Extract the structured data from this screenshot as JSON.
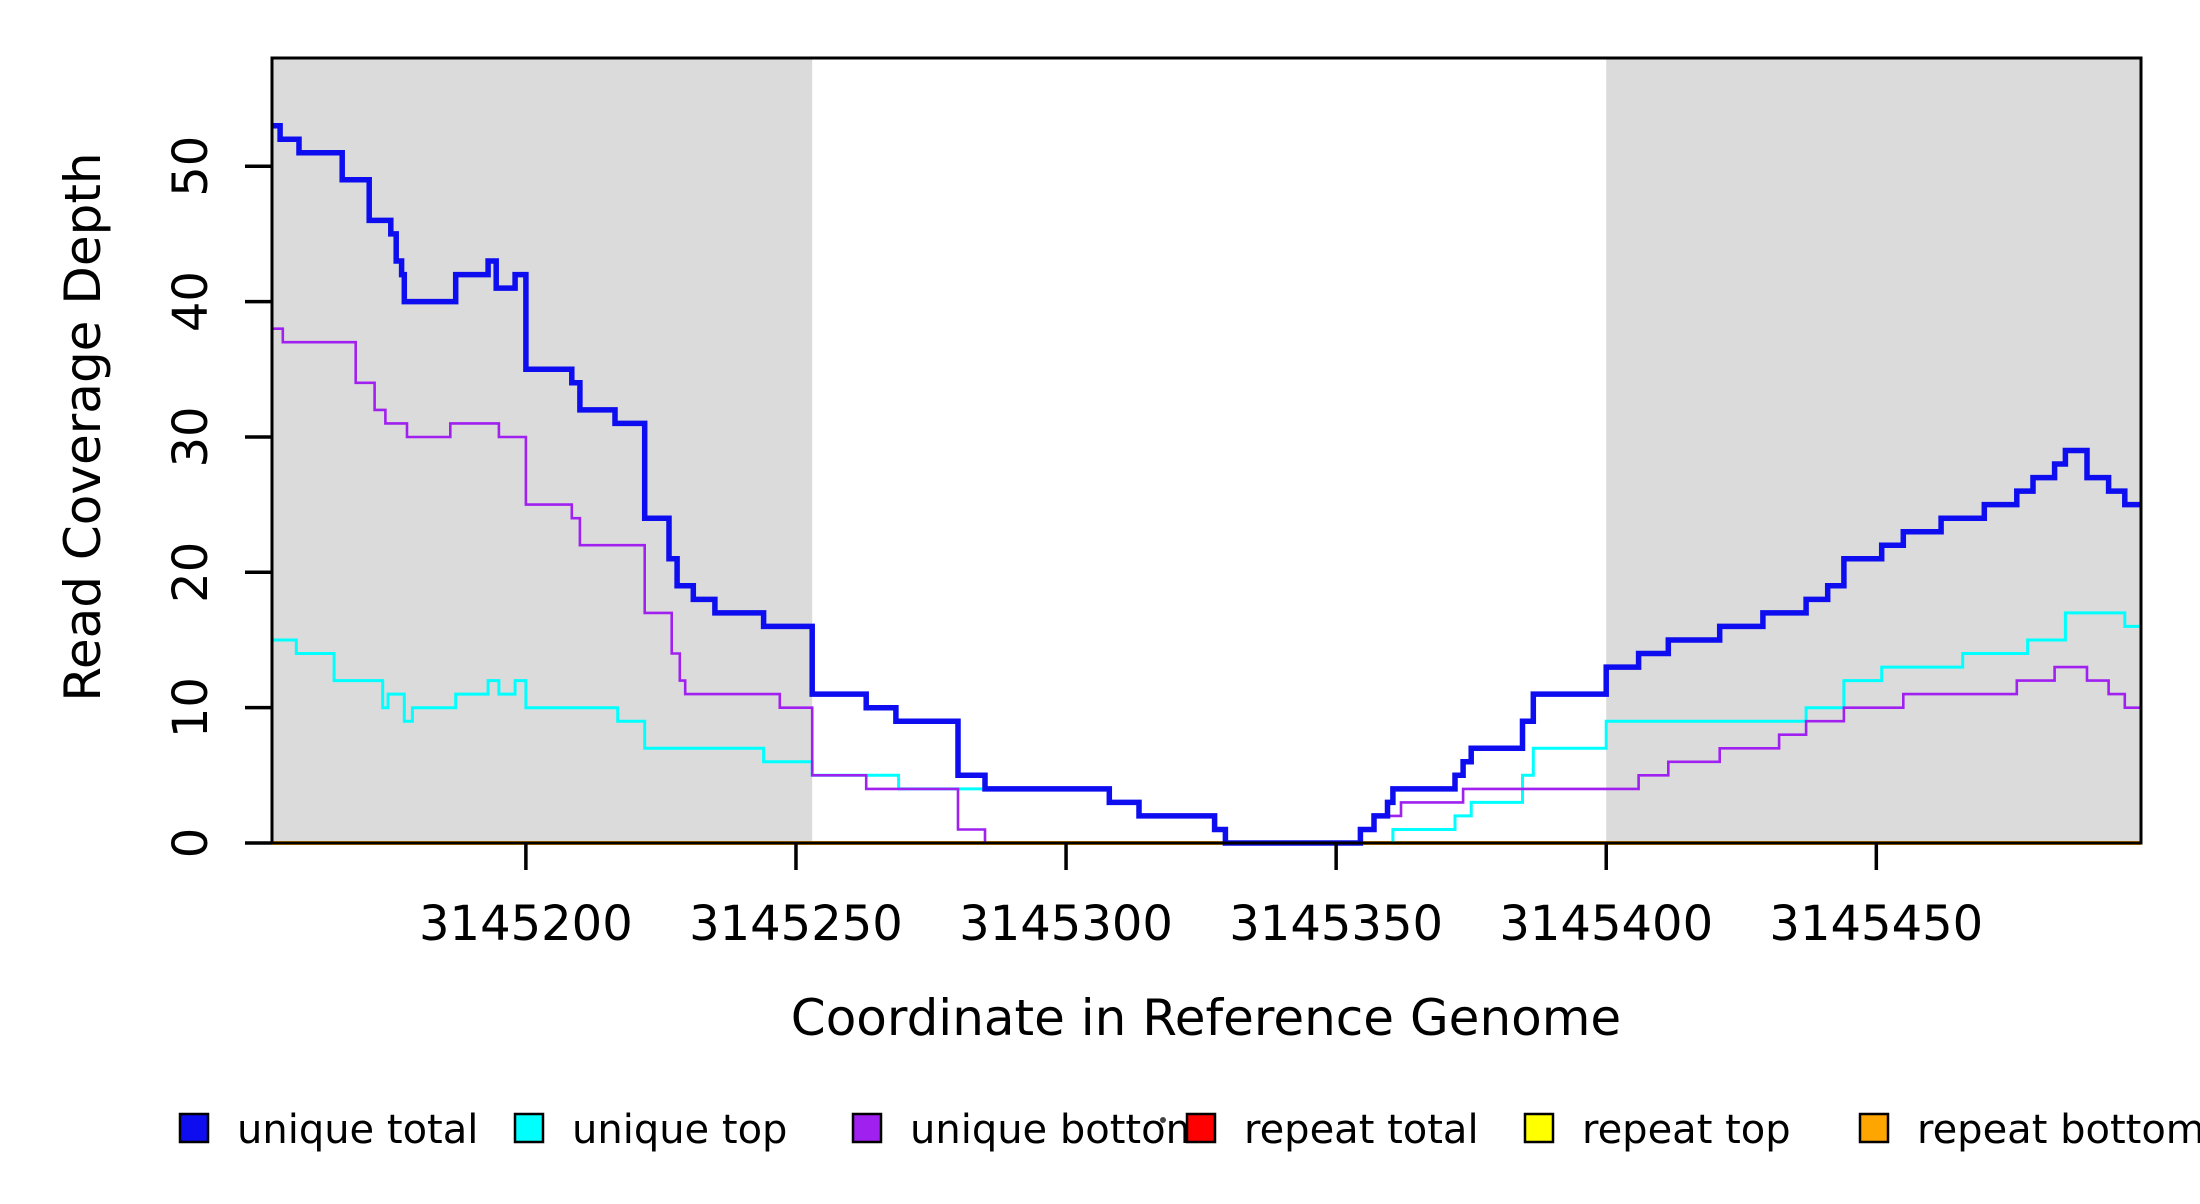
{
  "chart_data": {
    "type": "step-line",
    "title": "",
    "xlabel": "Coordinate in Reference Genome",
    "ylabel": "Read Coverage Depth",
    "xlim": [
      3145153,
      3145499
    ],
    "ylim": [
      0,
      58
    ],
    "grid": false,
    "legend_position": "bottom",
    "background_band_color": "#dbdbdb",
    "axis_color": "#000000",
    "x_ticks": [
      {
        "value": 3145200,
        "label": "3145200"
      },
      {
        "value": 3145250,
        "label": "3145250"
      },
      {
        "value": 3145300,
        "label": "3145300"
      },
      {
        "value": 3145350,
        "label": "3145350"
      },
      {
        "value": 3145400,
        "label": "3145400"
      },
      {
        "value": 3145450,
        "label": "3145450"
      }
    ],
    "y_ticks": [
      {
        "value": 0,
        "label": "0"
      },
      {
        "value": 10,
        "label": "10"
      },
      {
        "value": 20,
        "label": "20"
      },
      {
        "value": 30,
        "label": "30"
      },
      {
        "value": 40,
        "label": "40"
      },
      {
        "value": 50,
        "label": "50"
      }
    ],
    "shaded_regions": [
      {
        "x0": 3145153,
        "x1": 3145253
      },
      {
        "x0": 3145400,
        "x1": 3145499
      }
    ],
    "series": [
      {
        "name": "repeat total",
        "color": "#ff0000",
        "width": 2.6,
        "points": [
          [
            3145153,
            0
          ]
        ]
      },
      {
        "name": "repeat top",
        "color": "#ffff00",
        "width": 2.6,
        "points": [
          [
            3145153,
            0
          ]
        ]
      },
      {
        "name": "repeat bottom",
        "color": "#ffa500",
        "width": 4,
        "points": [
          [
            3145153,
            0
          ]
        ]
      },
      {
        "name": "unique top",
        "color": "#00ffff",
        "width": 3,
        "points": [
          [
            3145153,
            15
          ],
          [
            3145157.5,
            14
          ],
          [
            3145164.5,
            12
          ],
          [
            3145173.5,
            10
          ],
          [
            3145174.5,
            11
          ],
          [
            3145177.5,
            9
          ],
          [
            3145179,
            10
          ],
          [
            3145187,
            11
          ],
          [
            3145193,
            12
          ],
          [
            3145195,
            11
          ],
          [
            3145198,
            12
          ],
          [
            3145200,
            10
          ],
          [
            3145217,
            9
          ],
          [
            3145222,
            7
          ],
          [
            3145244,
            6
          ],
          [
            3145253,
            5
          ],
          [
            3145269,
            4
          ],
          [
            3145308,
            3
          ],
          [
            3145313.5,
            2
          ],
          [
            3145327.5,
            1
          ],
          [
            3145329.5,
            0
          ],
          [
            3145360.5,
            1
          ],
          [
            3145372,
            2
          ],
          [
            3145375,
            3
          ],
          [
            3145384.5,
            5
          ],
          [
            3145386.5,
            7
          ],
          [
            3145400,
            9
          ],
          [
            3145437,
            10
          ],
          [
            3145444,
            12
          ],
          [
            3145451,
            13
          ],
          [
            3145466,
            14
          ],
          [
            3145478,
            15
          ],
          [
            3145485,
            17
          ],
          [
            3145496,
            16
          ]
        ]
      },
      {
        "name": "unique bottom",
        "color": "#a020f0",
        "width": 2.6,
        "points": [
          [
            3145153,
            38
          ],
          [
            3145155,
            37
          ],
          [
            3145168.5,
            34
          ],
          [
            3145172,
            32
          ],
          [
            3145174,
            31
          ],
          [
            3145178,
            30
          ],
          [
            3145186,
            31
          ],
          [
            3145195,
            30
          ],
          [
            3145200,
            25
          ],
          [
            3145208.5,
            24
          ],
          [
            3145210,
            22
          ],
          [
            3145222,
            17
          ],
          [
            3145227,
            14
          ],
          [
            3145228.5,
            12
          ],
          [
            3145229.5,
            11
          ],
          [
            3145247,
            10
          ],
          [
            3145253,
            5
          ],
          [
            3145263,
            4
          ],
          [
            3145280,
            1
          ],
          [
            3145285,
            0
          ],
          [
            3145354.5,
            1
          ],
          [
            3145357,
            2
          ],
          [
            3145362,
            3
          ],
          [
            3145373.5,
            4
          ],
          [
            3145406,
            5
          ],
          [
            3145411.5,
            6
          ],
          [
            3145421,
            7
          ],
          [
            3145432,
            8
          ],
          [
            3145437,
            9
          ],
          [
            3145444,
            10
          ],
          [
            3145455,
            11
          ],
          [
            3145476,
            12
          ],
          [
            3145483,
            13
          ],
          [
            3145489,
            12
          ],
          [
            3145493,
            11
          ],
          [
            3145496,
            10
          ]
        ]
      },
      {
        "name": "unique total",
        "color": "#0d0df0",
        "width": 5.5,
        "points": [
          [
            3145153,
            53
          ],
          [
            3145154.5,
            52
          ],
          [
            3145158,
            51
          ],
          [
            3145166,
            49
          ],
          [
            3145171,
            46
          ],
          [
            3145175,
            45
          ],
          [
            3145176,
            43
          ],
          [
            3145177,
            42
          ],
          [
            3145177.5,
            40
          ],
          [
            3145187,
            42
          ],
          [
            3145193,
            43
          ],
          [
            3145194.5,
            41
          ],
          [
            3145198,
            42
          ],
          [
            3145200,
            35
          ],
          [
            3145208.5,
            34
          ],
          [
            3145210,
            32
          ],
          [
            3145216.5,
            31
          ],
          [
            3145222,
            24
          ],
          [
            3145226.5,
            21
          ],
          [
            3145228,
            19
          ],
          [
            3145231,
            18
          ],
          [
            3145235,
            17
          ],
          [
            3145244,
            16
          ],
          [
            3145253,
            11
          ],
          [
            3145263,
            10
          ],
          [
            3145268.5,
            9
          ],
          [
            3145280,
            5
          ],
          [
            3145285,
            4
          ],
          [
            3145308,
            3
          ],
          [
            3145313.5,
            2
          ],
          [
            3145327.5,
            1
          ],
          [
            3145329.5,
            0
          ],
          [
            3145354.5,
            1
          ],
          [
            3145357,
            2
          ],
          [
            3145359.5,
            3
          ],
          [
            3145360.5,
            4
          ],
          [
            3145372,
            5
          ],
          [
            3145373.5,
            6
          ],
          [
            3145375,
            7
          ],
          [
            3145384.5,
            9
          ],
          [
            3145386.5,
            11
          ],
          [
            3145400,
            13
          ],
          [
            3145406,
            14
          ],
          [
            3145411.5,
            15
          ],
          [
            3145421,
            16
          ],
          [
            3145429,
            17
          ],
          [
            3145437,
            18
          ],
          [
            3145441,
            19
          ],
          [
            3145444,
            21
          ],
          [
            3145451,
            22
          ],
          [
            3145455,
            23
          ],
          [
            3145462,
            24
          ],
          [
            3145470,
            25
          ],
          [
            3145476,
            26
          ],
          [
            3145479,
            27
          ],
          [
            3145483,
            28
          ],
          [
            3145485,
            29
          ],
          [
            3145489,
            27
          ],
          [
            3145493,
            26
          ],
          [
            3145496,
            25
          ]
        ]
      }
    ],
    "legend": [
      {
        "label": "unique total",
        "color": "#0d0df0"
      },
      {
        "label": "unique top",
        "color": "#00ffff"
      },
      {
        "label": "unique bottom",
        "color": "#a020f0"
      },
      {
        "label": "repeat total",
        "color": "#ff0000"
      },
      {
        "label": "repeat top",
        "color": "#ffff00"
      },
      {
        "label": "repeat bottom",
        "color": "#ffa500"
      }
    ]
  }
}
